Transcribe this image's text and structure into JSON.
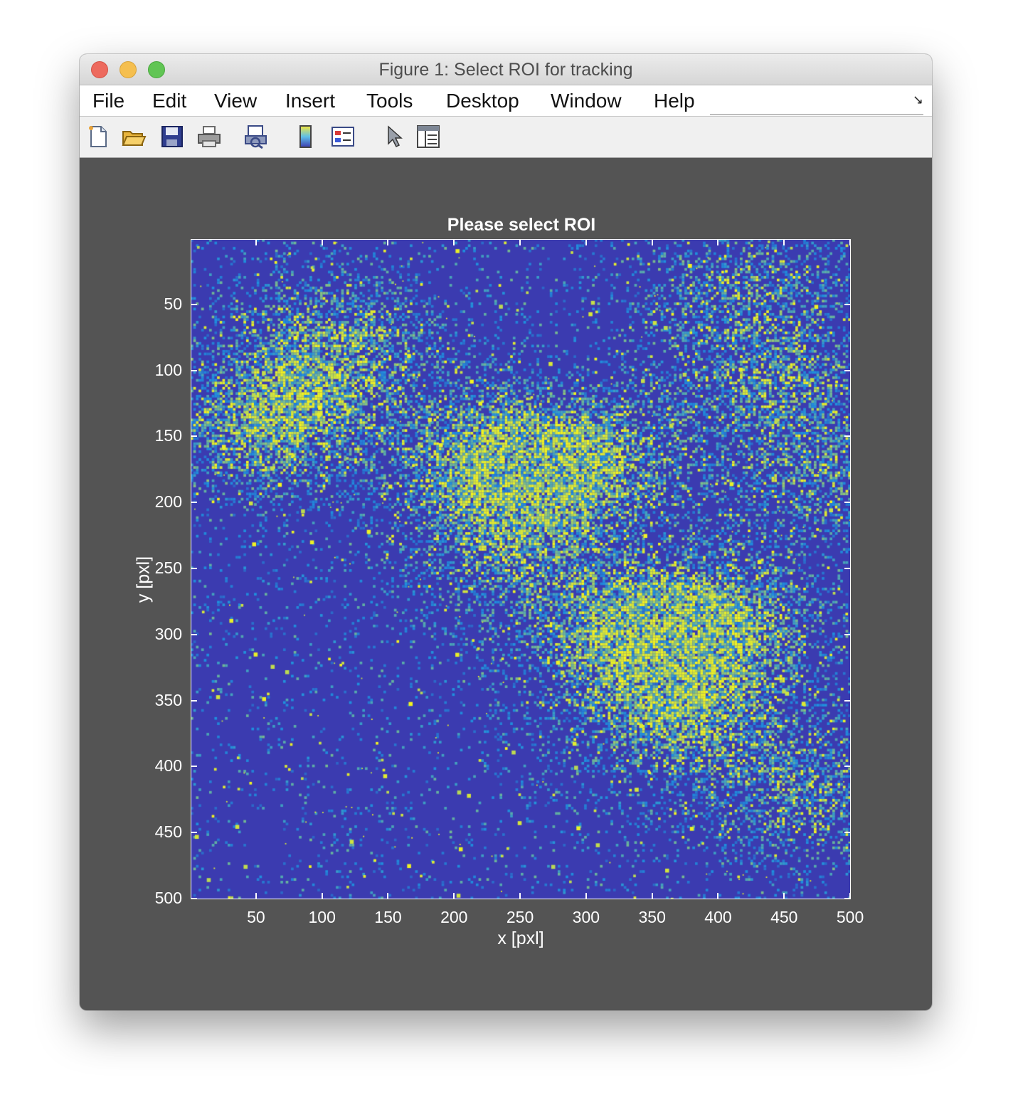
{
  "window": {
    "title": "Figure 1: Select ROI for tracking"
  },
  "menu": {
    "items": [
      "File",
      "Edit",
      "View",
      "Insert",
      "Tools",
      "Desktop",
      "Window",
      "Help"
    ]
  },
  "toolbar": {
    "icons": [
      "new-figure-icon",
      "open-file-icon",
      "save-icon",
      "print-icon",
      "print-preview-icon",
      "colorbar-icon",
      "legend-icon",
      "edit-plot-pointer-icon",
      "property-inspector-icon"
    ]
  },
  "chart_data": {
    "type": "heatmap",
    "title": "Please select ROI",
    "xlabel": "x [pxl]",
    "ylabel": "y [pxl]",
    "xlim": [
      0.5,
      500.5
    ],
    "ylim": [
      0.5,
      500.5
    ],
    "y_direction": "reverse",
    "x_ticks": [
      50,
      100,
      150,
      200,
      250,
      300,
      350,
      400,
      450,
      500
    ],
    "y_ticks": [
      50,
      100,
      150,
      200,
      250,
      300,
      350,
      400,
      450,
      500
    ],
    "x_tick_labels": [
      "50",
      "100",
      "150",
      "200",
      "250",
      "300",
      "350",
      "400",
      "450",
      "500"
    ],
    "y_tick_labels": [
      "50",
      "100",
      "150",
      "200",
      "250",
      "300",
      "350",
      "400",
      "450",
      "500"
    ],
    "colormap": "parula",
    "colors": {
      "low": "#3b3bb0",
      "mid": "#1f8fde",
      "high": "#f5f51e"
    },
    "bright_regions": [
      {
        "x": 60,
        "y": 140,
        "intensity": 0.9
      },
      {
        "x": 110,
        "y": 80,
        "intensity": 0.7
      },
      {
        "x": 230,
        "y": 165,
        "intensity": 0.85
      },
      {
        "x": 300,
        "y": 170,
        "intensity": 0.8
      },
      {
        "x": 240,
        "y": 230,
        "intensity": 0.6
      },
      {
        "x": 395,
        "y": 290,
        "intensity": 0.9
      },
      {
        "x": 330,
        "y": 300,
        "intensity": 0.8
      },
      {
        "x": 370,
        "y": 360,
        "intensity": 0.75
      },
      {
        "x": 440,
        "y": 110,
        "intensity": 0.55
      },
      {
        "x": 460,
        "y": 420,
        "intensity": 0.55
      },
      {
        "x": 415,
        "y": 40,
        "intensity": 0.45
      },
      {
        "x": 480,
        "y": 180,
        "intensity": 0.5
      }
    ]
  }
}
